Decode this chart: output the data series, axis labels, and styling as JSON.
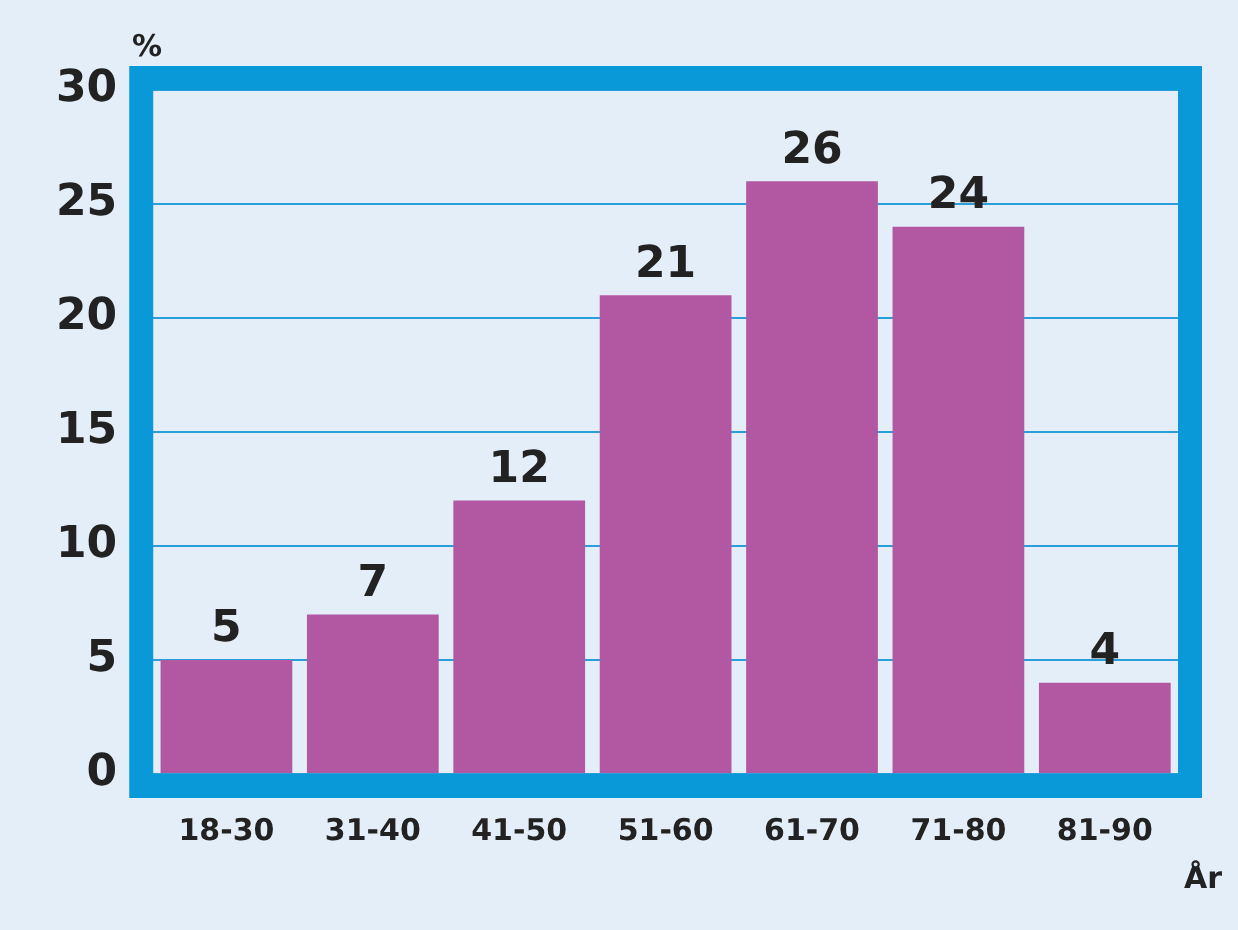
{
  "chart_data": {
    "type": "bar",
    "ylabel": "%",
    "xlabel": "År",
    "categories": [
      "18-30",
      "31-40",
      "41-50",
      "51-60",
      "61-70",
      "71-80",
      "81-90"
    ],
    "values": [
      5,
      7,
      12,
      21,
      26,
      24,
      4
    ],
    "color": "#b258a3",
    "ylim": [
      0,
      30
    ],
    "yticks": [
      0,
      5,
      10,
      15,
      20,
      25,
      30
    ],
    "grid": "y",
    "data_labels": true
  }
}
